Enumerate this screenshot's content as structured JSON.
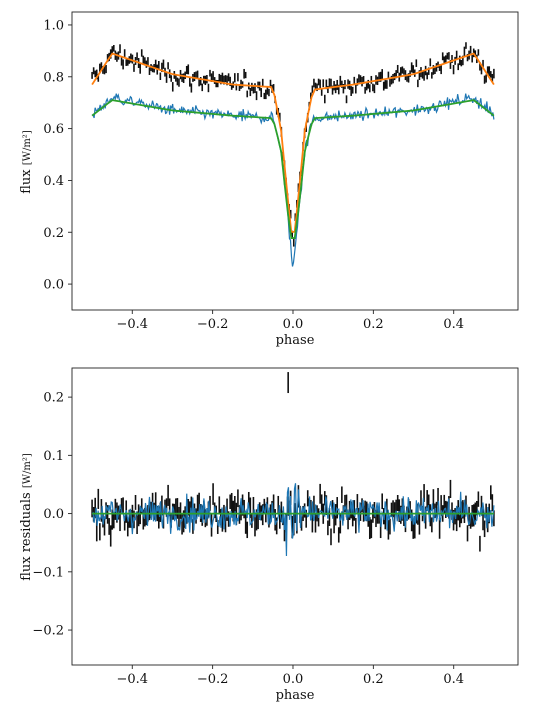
{
  "chart_data": [
    {
      "type": "line",
      "panel": "top",
      "xlabel": "phase",
      "ylabel": "flux",
      "ylabel_unit": "[W/m²]",
      "xlim": [
        -0.55,
        0.56
      ],
      "ylim": [
        -0.1,
        1.05
      ],
      "xticks": [
        -0.4,
        -0.2,
        0.0,
        0.2,
        0.4
      ],
      "xtick_labels": [
        "−0.4",
        "−0.2",
        "0.0",
        "0.2",
        "0.4"
      ],
      "yticks": [
        0.0,
        0.2,
        0.4,
        0.6,
        0.8,
        1.0
      ],
      "ytick_labels": [
        "0.0",
        "0.2",
        "0.4",
        "0.6",
        "0.8",
        "1.0"
      ],
      "series": [
        {
          "kind": "errorbar",
          "color": "#111111",
          "noise": 0.035,
          "errbar": 0.03,
          "profile": [
            [
              -0.5,
              0.78
            ],
            [
              -0.45,
              0.89
            ],
            [
              -0.3,
              0.81
            ],
            [
              -0.15,
              0.77
            ],
            [
              -0.05,
              0.76
            ],
            [
              -0.03,
              0.6
            ],
            [
              -0.015,
              0.38
            ],
            [
              0.0,
              0.14
            ],
            [
              0.015,
              0.38
            ],
            [
              0.03,
              0.6
            ],
            [
              0.05,
              0.76
            ],
            [
              0.15,
              0.77
            ],
            [
              0.3,
              0.81
            ],
            [
              0.45,
              0.89
            ],
            [
              0.5,
              0.78
            ]
          ]
        },
        {
          "kind": "line",
          "color": "#ff7f0e",
          "profile": [
            [
              -0.5,
              0.77
            ],
            [
              -0.45,
              0.89
            ],
            [
              -0.3,
              0.81
            ],
            [
              -0.15,
              0.77
            ],
            [
              -0.05,
              0.76
            ],
            [
              -0.03,
              0.6
            ],
            [
              -0.015,
              0.36
            ],
            [
              0.0,
              0.14
            ],
            [
              0.015,
              0.36
            ],
            [
              0.03,
              0.6
            ],
            [
              0.05,
              0.75
            ],
            [
              0.15,
              0.77
            ],
            [
              0.3,
              0.81
            ],
            [
              0.45,
              0.89
            ],
            [
              0.5,
              0.77
            ]
          ]
        },
        {
          "kind": "noisy-line",
          "color": "#1f77b4",
          "noise": 0.02,
          "profile": [
            [
              -0.5,
              0.65
            ],
            [
              -0.45,
              0.72
            ],
            [
              -0.3,
              0.67
            ],
            [
              -0.15,
              0.65
            ],
            [
              -0.05,
              0.64
            ],
            [
              -0.03,
              0.52
            ],
            [
              -0.015,
              0.3
            ],
            [
              0.0,
              0.05
            ],
            [
              0.015,
              0.3
            ],
            [
              0.03,
              0.52
            ],
            [
              0.05,
              0.64
            ],
            [
              0.15,
              0.65
            ],
            [
              0.3,
              0.67
            ],
            [
              0.45,
              0.72
            ],
            [
              0.5,
              0.65
            ]
          ]
        },
        {
          "kind": "line",
          "color": "#2ca02c",
          "profile": [
            [
              -0.5,
              0.65
            ],
            [
              -0.45,
              0.71
            ],
            [
              -0.3,
              0.67
            ],
            [
              -0.15,
              0.65
            ],
            [
              -0.05,
              0.64
            ],
            [
              -0.03,
              0.52
            ],
            [
              -0.015,
              0.3
            ],
            [
              0.0,
              0.13
            ],
            [
              0.015,
              0.3
            ],
            [
              0.03,
              0.52
            ],
            [
              0.05,
              0.64
            ],
            [
              0.15,
              0.65
            ],
            [
              0.3,
              0.67
            ],
            [
              0.45,
              0.71
            ],
            [
              0.5,
              0.65
            ]
          ]
        }
      ]
    },
    {
      "type": "line",
      "panel": "bottom",
      "xlabel": "phase",
      "ylabel": "flux residuals",
      "ylabel_unit": "[W/m²]",
      "xlim": [
        -0.55,
        0.56
      ],
      "ylim": [
        -0.26,
        0.25
      ],
      "xticks": [
        -0.4,
        -0.2,
        0.0,
        0.2,
        0.4
      ],
      "xtick_labels": [
        "−0.4",
        "−0.2",
        "0.0",
        "0.2",
        "0.4"
      ],
      "yticks": [
        -0.2,
        -0.1,
        0.0,
        0.1,
        0.2
      ],
      "ytick_labels": [
        "−0.2",
        "−0.1",
        "0.0",
        "0.1",
        "0.2"
      ],
      "series": [
        {
          "kind": "errorbar",
          "color": "#111111",
          "noise": 0.03,
          "errbar": 0.03,
          "profile": [
            [
              -0.5,
              0.0
            ],
            [
              0.5,
              0.0
            ]
          ]
        },
        {
          "kind": "noisy-line",
          "color": "#1f77b4",
          "noise": 0.025,
          "dip_noise": 0.07,
          "profile": [
            [
              -0.5,
              0.0
            ],
            [
              0.5,
              0.0
            ]
          ]
        },
        {
          "kind": "line",
          "color": "#2ca02c",
          "profile": [
            [
              -0.5,
              0.0
            ],
            [
              0.5,
              0.0
            ]
          ]
        }
      ],
      "outlier": {
        "x": -0.012,
        "y": 0.225,
        "err": 0.018
      }
    }
  ]
}
